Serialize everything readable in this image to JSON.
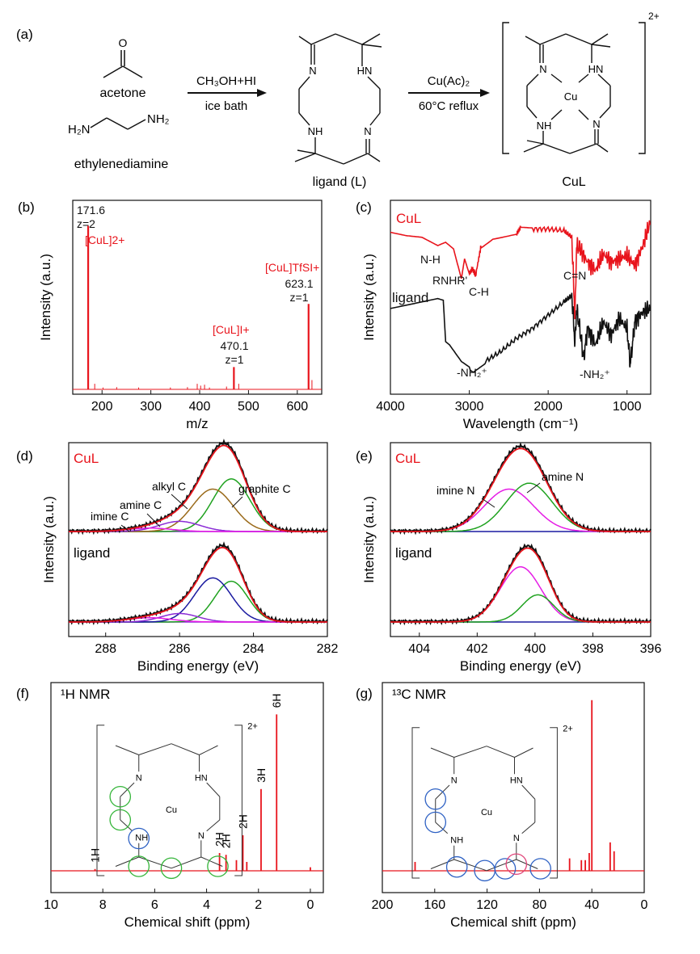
{
  "colors": {
    "red": "#e8141c",
    "black": "#111111",
    "green": "#1fa21f",
    "blue": "#1a1aa0",
    "magenta": "#e51ce5",
    "purple": "#8b2bd6",
    "brown": "#9a6a1a",
    "circle_green": "#35b53a",
    "circle_blue": "#2f62c4",
    "circle_pink": "#e0457a"
  },
  "panel_a": {
    "label": "(a)",
    "acetone": "acetone",
    "o_atom": "O",
    "ethylenediamine": "ethylenediamine",
    "h2n_left": "H₂N",
    "nh2_right": "NH₂",
    "step1_top": "CH₃OH+HI",
    "step1_bottom": "ice bath",
    "ligand": "ligand (L)",
    "step2_top": "Cu(Ac)₂",
    "step2_bottom": "60°C reflux",
    "product": "CuL",
    "charge": "2+",
    "atoms": {
      "n": "N",
      "hn": "HN",
      "nh": "NH",
      "cu": "Cu"
    }
  },
  "chart_data": [
    {
      "id": "b",
      "label": "(b)",
      "type": "bar",
      "xlabel": "m/z",
      "ylabel": "Intensity (a.u.)",
      "xlim": [
        140,
        650
      ],
      "xticks": [
        200,
        300,
        400,
        500,
        600
      ],
      "ylim": [
        0,
        1
      ],
      "x": [
        171.6,
        185,
        202,
        230,
        275,
        340,
        375,
        395,
        402,
        410,
        420,
        455,
        470.1,
        480,
        623.1,
        630
      ],
      "values": [
        0.88,
        0.03,
        0.01,
        0.012,
        0.01,
        0.01,
        0.012,
        0.03,
        0.02,
        0.025,
        0.01,
        0.015,
        0.12,
        0.03,
        0.46,
        0.05
      ],
      "annotations": [
        {
          "lines": [
            "171.6",
            "z=2"
          ],
          "x": 171.6,
          "color": "black"
        },
        {
          "lines": [
            "[CuL]2+"
          ],
          "x": 171.6,
          "color": "red"
        },
        {
          "lines": [
            "[CuL]I+"
          ],
          "x": 470.1,
          "color": "red"
        },
        {
          "lines": [
            "470.1",
            "z=1"
          ],
          "x": 470.1,
          "color": "black"
        },
        {
          "lines": [
            "[CuL]TfSI+"
          ],
          "x": 623.1,
          "color": "red"
        },
        {
          "lines": [
            "623.1",
            "z=1"
          ],
          "x": 623.1,
          "color": "black"
        }
      ]
    },
    {
      "id": "c",
      "label": "(c)",
      "type": "line",
      "xlabel": "Wavelength (cm⁻¹)",
      "ylabel": "Intensity (a.u.)",
      "xlim": [
        4000,
        700
      ],
      "xticks": [
        4000,
        3000,
        2000,
        1000
      ],
      "series": [
        {
          "name": "CuL",
          "color": "red",
          "x": [
            4000,
            3800,
            3600,
            3400,
            3300,
            3200,
            3100,
            3060,
            3000,
            2960,
            2920,
            2850,
            2700,
            2400,
            2350,
            2200,
            2000,
            1800,
            1700,
            1660,
            1640,
            1600,
            1500,
            1400,
            1300,
            1200,
            1100,
            1000,
            900,
            800,
            700
          ],
          "y": [
            0.88,
            0.86,
            0.85,
            0.8,
            0.82,
            0.78,
            0.6,
            0.72,
            0.63,
            0.66,
            0.62,
            0.8,
            0.85,
            0.87,
            0.91,
            0.9,
            0.9,
            0.89,
            0.85,
            0.35,
            0.8,
            0.78,
            0.7,
            0.65,
            0.75,
            0.7,
            0.72,
            0.74,
            0.68,
            0.8,
            0.95
          ]
        },
        {
          "name": "ligand",
          "color": "black",
          "x": [
            4000,
            3700,
            3400,
            3330,
            3300,
            3250,
            3100,
            2950,
            2800,
            2600,
            2400,
            2200,
            2000,
            1800,
            1700,
            1660,
            1640,
            1600,
            1550,
            1500,
            1400,
            1300,
            1200,
            1100,
            1000,
            960,
            900,
            800,
            700
          ],
          "y": [
            0.42,
            0.45,
            0.48,
            0.47,
            0.22,
            0.2,
            0.1,
            0.05,
            0.1,
            0.16,
            0.24,
            0.3,
            0.38,
            0.46,
            0.5,
            0.2,
            0.42,
            0.3,
            0.12,
            0.3,
            0.2,
            0.34,
            0.26,
            0.36,
            0.3,
            0.08,
            0.34,
            0.4,
            0.42
          ]
        }
      ],
      "annotations": [
        "N-H",
        "RNHR'",
        "C-H",
        "C=N",
        "-NH₂⁺",
        "-NH₂⁺"
      ],
      "series_labels": [
        "CuL",
        "ligand"
      ]
    },
    {
      "id": "d",
      "label": "(d)",
      "type": "line",
      "xlabel": "Binding energy (eV)",
      "ylabel": "Intensity (a.u.)",
      "xlim": [
        289,
        282
      ],
      "xticks": [
        288,
        286,
        284,
        282
      ],
      "top": {
        "name": "CuL",
        "peaks": [
          {
            "name": "graphite C",
            "center": 284.6,
            "height": 0.62,
            "width": 0.5,
            "color": "green"
          },
          {
            "name": "alkyl C",
            "center": 285.1,
            "height": 0.5,
            "width": 0.55,
            "color": "brown"
          },
          {
            "name": "amine C",
            "center": 286.0,
            "height": 0.12,
            "width": 0.55,
            "color": "purple"
          },
          {
            "name": "imine C",
            "center": 286.8,
            "height": 0.04,
            "width": 0.6,
            "color": "magenta"
          }
        ]
      },
      "bottom": {
        "name": "ligand",
        "peaks": [
          {
            "center": 284.6,
            "height": 0.48,
            "width": 0.45,
            "color": "green"
          },
          {
            "center": 285.1,
            "height": 0.52,
            "width": 0.5,
            "color": "blue"
          },
          {
            "center": 286.0,
            "height": 0.1,
            "width": 0.5,
            "color": "purple"
          },
          {
            "center": 286.8,
            "height": 0.05,
            "width": 0.6,
            "color": "magenta"
          }
        ]
      },
      "labels": [
        "CuL",
        "ligand",
        "alkyl C",
        "amine C",
        "imine C",
        "graphite C"
      ]
    },
    {
      "id": "e",
      "label": "(e)",
      "type": "line",
      "xlabel": "Binding energy (eV)",
      "ylabel": "Intensity (a.u.)",
      "xlim": [
        405,
        396
      ],
      "xticks": [
        404,
        402,
        400,
        398,
        396
      ],
      "top": {
        "name": "CuL",
        "peaks": [
          {
            "name": "imine N",
            "center": 400.9,
            "height": 0.5,
            "width": 0.85,
            "color": "magenta"
          },
          {
            "name": "amine N",
            "center": 400.2,
            "height": 0.57,
            "width": 0.8,
            "color": "green"
          }
        ]
      },
      "bottom": {
        "name": "ligand",
        "peaks": [
          {
            "center": 400.5,
            "height": 0.65,
            "width": 0.7,
            "color": "magenta"
          },
          {
            "center": 399.9,
            "height": 0.32,
            "width": 0.55,
            "color": "green"
          }
        ]
      },
      "labels": [
        "CuL",
        "ligand",
        "imine N",
        "amine N"
      ]
    },
    {
      "id": "f",
      "label": "(f)",
      "type": "bar",
      "title": "¹H NMR",
      "xlabel": "Chemical shift (ppm)",
      "xlim": [
        10,
        -0.5
      ],
      "xticks": [
        10,
        8,
        6,
        4,
        2,
        0
      ],
      "x": [
        8.3,
        3.5,
        3.25,
        2.85,
        2.6,
        2.45,
        1.9,
        1.3,
        0.0
      ],
      "values": [
        0.01,
        0.1,
        0.09,
        0.06,
        0.2,
        0.05,
        0.46,
        0.88,
        0.02
      ],
      "peak_labels": [
        {
          "x": 8.3,
          "text": "1H"
        },
        {
          "x": 3.5,
          "text": "2H"
        },
        {
          "x": 3.25,
          "text": "2H"
        },
        {
          "x": 2.6,
          "text": "2H"
        },
        {
          "x": 1.9,
          "text": "3H"
        },
        {
          "x": 1.3,
          "text": "6H"
        }
      ],
      "charge": "2+"
    },
    {
      "id": "g",
      "label": "(g)",
      "type": "bar",
      "title": "¹³C NMR",
      "xlabel": "Chemical shift (ppm)",
      "xlim": [
        200,
        0
      ],
      "xticks": [
        200,
        160,
        120,
        80,
        40,
        0
      ],
      "x": [
        175,
        57,
        48,
        45,
        42,
        40,
        26,
        23
      ],
      "values": [
        0.05,
        0.07,
        0.06,
        0.06,
        0.1,
        0.96,
        0.16,
        0.11
      ],
      "charge": "2+"
    }
  ]
}
